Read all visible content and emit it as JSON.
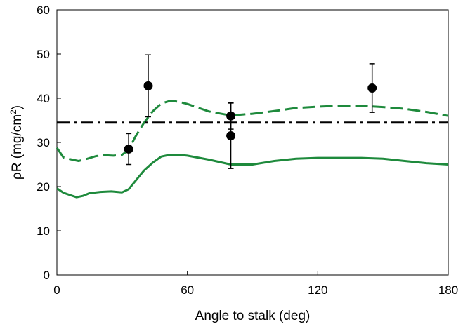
{
  "chart_data": {
    "type": "line",
    "xlabel": "Angle to stalk (deg)",
    "ylabel_main": "ρR (mg/cm",
    "ylabel_sup": "2",
    "ylabel_close": ")",
    "xlim": [
      0,
      180
    ],
    "ylim": [
      0,
      60
    ],
    "x_ticks": [
      0,
      60,
      120,
      180
    ],
    "y_ticks": [
      0,
      10,
      20,
      30,
      40,
      50,
      60
    ],
    "grid": false,
    "legend": "none",
    "series": [
      {
        "style": "solid",
        "color": "#1e8a3c",
        "x": [
          0,
          3,
          6,
          9,
          12,
          15,
          20,
          25,
          30,
          33,
          36,
          40,
          44,
          48,
          52,
          56,
          60,
          70,
          80,
          90,
          100,
          110,
          120,
          130,
          140,
          150,
          160,
          170,
          180
        ],
        "y": [
          19.6,
          18.6,
          18.1,
          17.6,
          17.9,
          18.5,
          18.8,
          18.9,
          18.7,
          19.4,
          21.2,
          23.6,
          25.4,
          26.8,
          27.2,
          27.2,
          27.0,
          26.1,
          25.0,
          25.0,
          25.8,
          26.3,
          26.5,
          26.5,
          26.5,
          26.3,
          25.8,
          25.3,
          25.0
        ]
      },
      {
        "style": "dashed",
        "color": "#1e8a3c",
        "x": [
          0,
          3,
          6,
          10,
          14,
          18,
          22,
          26,
          30,
          33,
          36,
          40,
          44,
          48,
          52,
          56,
          60,
          70,
          80,
          90,
          100,
          110,
          120,
          130,
          140,
          150,
          160,
          170,
          180
        ],
        "y": [
          28.8,
          26.6,
          26.2,
          25.8,
          26.3,
          26.9,
          27.1,
          27.0,
          27.2,
          28.3,
          31.2,
          34.4,
          37.0,
          38.8,
          39.4,
          39.2,
          38.7,
          37.0,
          36.1,
          36.5,
          37.1,
          37.8,
          38.1,
          38.3,
          38.3,
          38.0,
          37.6,
          36.9,
          36.0
        ]
      },
      {
        "style": "dash-dot",
        "color": "#000000",
        "x": [
          0,
          180
        ],
        "y": [
          34.5,
          34.5
        ]
      }
    ],
    "points": [
      {
        "x": 33,
        "y": 28.5,
        "y_upper": 32.0,
        "y_lower": 25.0
      },
      {
        "x": 42,
        "y": 42.8,
        "y_upper": 49.8,
        "y_lower": 35.8
      },
      {
        "x": 80,
        "y": 36.0,
        "y_upper": 39.0,
        "y_lower": 33.0
      },
      {
        "x": 80,
        "y": 31.5,
        "y_upper": 38.9,
        "y_lower": 24.1
      },
      {
        "x": 145,
        "y": 42.3,
        "y_upper": 47.8,
        "y_lower": 36.8
      }
    ]
  }
}
